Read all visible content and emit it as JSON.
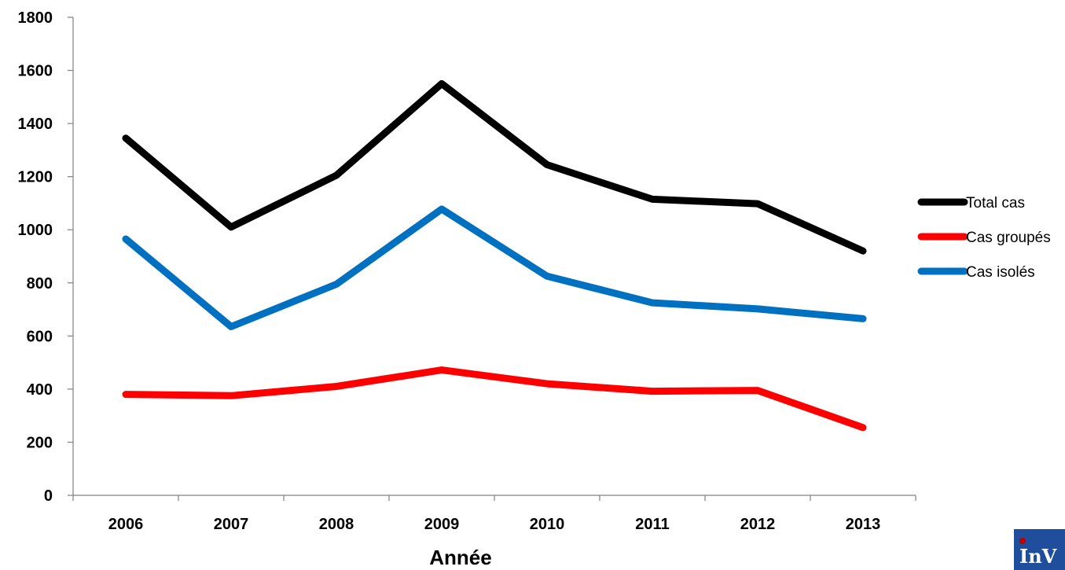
{
  "chart_data": {
    "type": "line",
    "title": "",
    "xlabel": "Année",
    "ylabel": "",
    "categories": [
      "2006",
      "2007",
      "2008",
      "2009",
      "2010",
      "2011",
      "2012",
      "2013"
    ],
    "ylim": [
      0,
      1800
    ],
    "yticks": [
      0,
      200,
      400,
      600,
      800,
      1000,
      1200,
      1400,
      1600,
      1800
    ],
    "grid": false,
    "legend_position": "right",
    "series": [
      {
        "name": "Total cas",
        "color": "#000000",
        "values": [
          1345,
          1010,
          1205,
          1550,
          1245,
          1115,
          1098,
          920
        ]
      },
      {
        "name": "Cas groupés",
        "color": "#ff0000",
        "values": [
          380,
          375,
          410,
          472,
          420,
          392,
          395,
          255
        ]
      },
      {
        "name": "Cas isolés",
        "color": "#0070c0",
        "values": [
          965,
          635,
          795,
          1078,
          825,
          725,
          702,
          665
        ]
      }
    ]
  },
  "logo": {
    "text": "InV",
    "color": "#1f4e9c",
    "accent": "#c00000"
  }
}
